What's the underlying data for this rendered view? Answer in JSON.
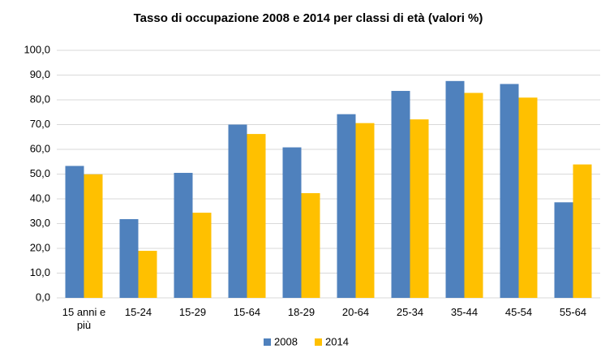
{
  "chart_data": {
    "type": "bar",
    "title": "Tasso di occupazione  2008 e 2014 per classi di età (valori %)",
    "categories": [
      "15 anni e più",
      "15-24",
      "15-29",
      "15-64",
      "18-29",
      "20-64",
      "25-34",
      "35-44",
      "45-54",
      "55-64"
    ],
    "series": [
      {
        "name": "2008",
        "color": "#4f81bd",
        "values": [
          53.3,
          31.8,
          50.5,
          70.0,
          60.8,
          74.2,
          83.6,
          87.6,
          86.4,
          38.6
        ]
      },
      {
        "name": "2014",
        "color": "#ffc000",
        "values": [
          49.9,
          19.0,
          34.4,
          66.2,
          42.3,
          70.6,
          72.1,
          82.8,
          80.9,
          53.9
        ]
      }
    ],
    "ylim": [
      0,
      100
    ],
    "yticks": [
      {
        "value": 0,
        "label": "0,0"
      },
      {
        "value": 10,
        "label": "10,0"
      },
      {
        "value": 20,
        "label": "20,0"
      },
      {
        "value": 30,
        "label": "30,0"
      },
      {
        "value": 40,
        "label": "40,0"
      },
      {
        "value": 50,
        "label": "50,0"
      },
      {
        "value": 60,
        "label": "60,0"
      },
      {
        "value": 70,
        "label": "70,0"
      },
      {
        "value": 80,
        "label": "80,0"
      },
      {
        "value": 90,
        "label": "90,0"
      },
      {
        "value": 100,
        "label": "100,0"
      }
    ],
    "grid": true
  }
}
